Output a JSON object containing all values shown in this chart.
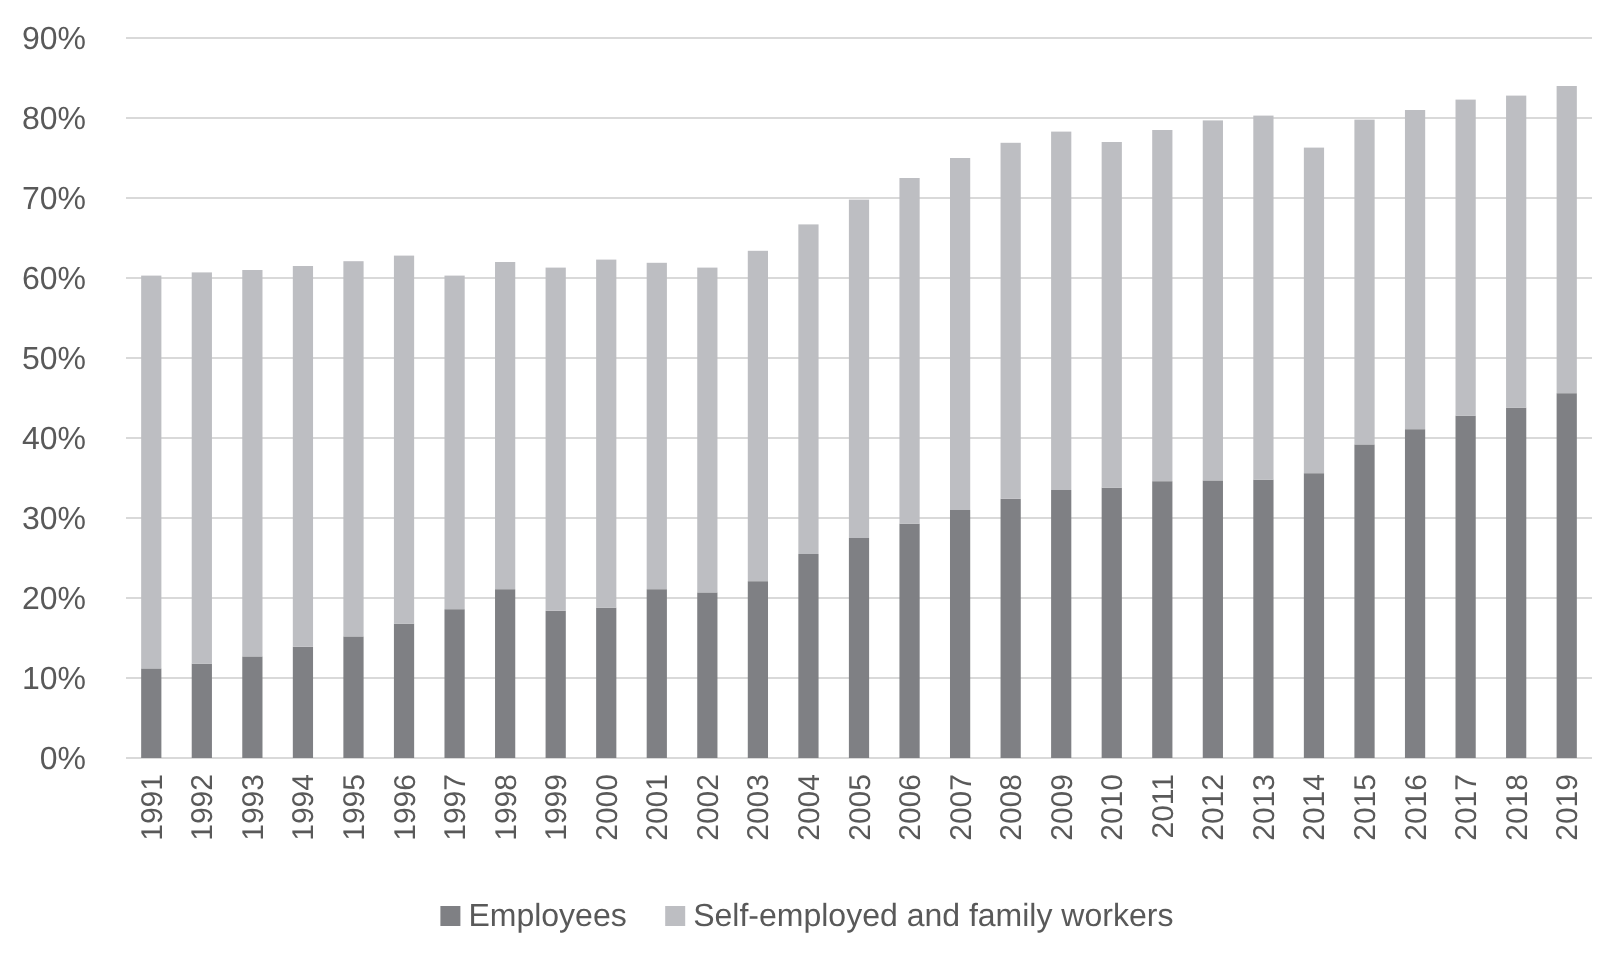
{
  "chart_data": {
    "type": "bar",
    "stacked": true,
    "categories": [
      "1991",
      "1992",
      "1993",
      "1994",
      "1995",
      "1996",
      "1997",
      "1998",
      "1999",
      "2000",
      "2001",
      "2002",
      "2003",
      "2004",
      "2005",
      "2006",
      "2007",
      "2008",
      "2009",
      "2010",
      "2011",
      "2012",
      "2013",
      "2014",
      "2015",
      "2016",
      "2017",
      "2018",
      "2019"
    ],
    "series": [
      {
        "name": "Employees",
        "color": "#7f8084",
        "values": [
          11.2,
          11.8,
          12.7,
          13.9,
          15.2,
          16.8,
          18.6,
          21.1,
          18.4,
          18.8,
          21.1,
          20.7,
          22.1,
          25.5,
          27.5,
          29.3,
          31.0,
          32.4,
          33.5,
          33.8,
          34.6,
          34.7,
          34.8,
          35.6,
          39.2,
          41.1,
          42.8,
          43.8,
          45.6
        ]
      },
      {
        "name": "Self-employed and family workers",
        "color": "#bdbec2",
        "values": [
          49.1,
          48.9,
          48.3,
          47.6,
          46.9,
          46.0,
          41.7,
          40.9,
          42.9,
          43.5,
          40.8,
          40.6,
          41.3,
          41.2,
          42.3,
          43.2,
          44.0,
          44.5,
          44.8,
          43.2,
          43.9,
          45.0,
          45.5,
          40.7,
          40.6,
          39.9,
          39.5,
          39.0,
          38.4
        ]
      }
    ],
    "ylim": [
      0,
      90
    ],
    "yticks": [
      {
        "value": 0,
        "label": "0%"
      },
      {
        "value": 10,
        "label": "10%"
      },
      {
        "value": 20,
        "label": "20%"
      },
      {
        "value": 30,
        "label": "30%"
      },
      {
        "value": 40,
        "label": "40%"
      },
      {
        "value": 50,
        "label": "50%"
      },
      {
        "value": 60,
        "label": "60%"
      },
      {
        "value": 70,
        "label": "70%"
      },
      {
        "value": 80,
        "label": "80%"
      },
      {
        "value": 90,
        "label": "90%"
      }
    ],
    "grid": "y",
    "legend": "bottom"
  }
}
